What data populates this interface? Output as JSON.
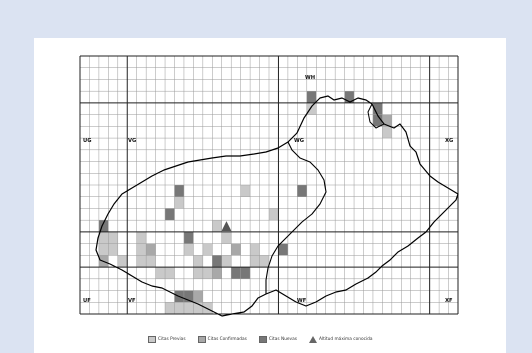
{
  "map": {
    "grid_labels": [
      {
        "id": "WH",
        "text": "WH"
      },
      {
        "id": "UG",
        "text": "UG"
      },
      {
        "id": "VG",
        "text": "VG"
      },
      {
        "id": "WG",
        "text": "WG"
      },
      {
        "id": "XG",
        "text": "XG"
      },
      {
        "id": "UF",
        "text": "UF"
      },
      {
        "id": "VF",
        "text": "VF"
      },
      {
        "id": "WF",
        "text": "WF"
      },
      {
        "id": "XF",
        "text": "XF"
      }
    ],
    "colors": {
      "previous": "#c9c9c9",
      "confirmed": "#a8a8a8",
      "new": "#777777",
      "grid_fine": "#9a9a9a",
      "grid_major": "#222222",
      "boundary": "#000000"
    }
  },
  "legend": {
    "items": [
      {
        "key": "previous",
        "label": "Citas Previas"
      },
      {
        "key": "confirmed",
        "label": "Citas Confirmadas"
      },
      {
        "key": "new",
        "label": "Citas Nuevas"
      },
      {
        "key": "altitude",
        "label": "Altitud máxima conocida"
      }
    ],
    "altitude_icon": "triangle-icon"
  }
}
